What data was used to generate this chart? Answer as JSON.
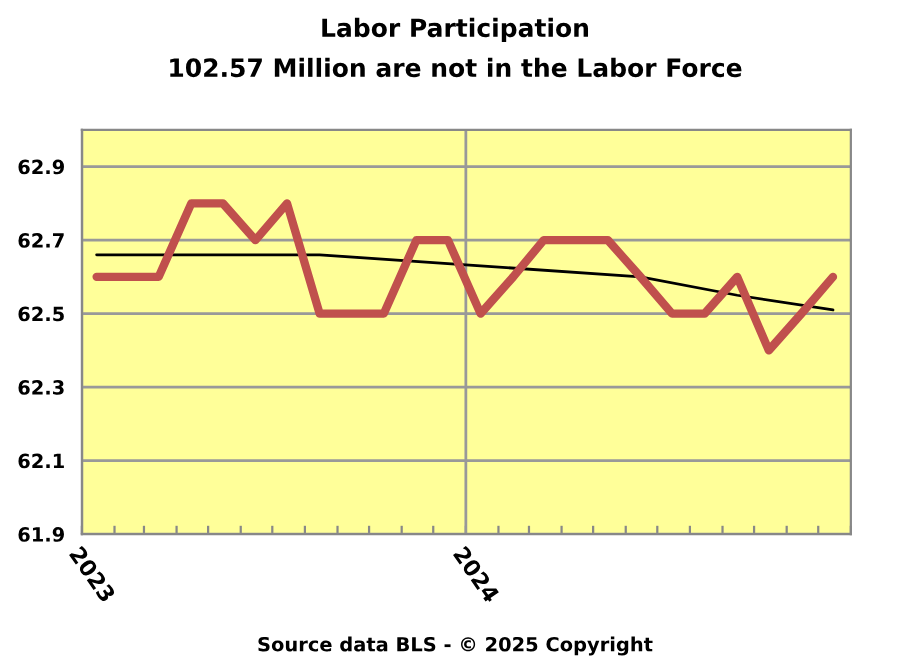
{
  "chart_data": {
    "type": "line",
    "title": "Labor Participation",
    "subtitle": "102.57 Million are not in the Labor Force",
    "annotations": [
      "Source data BLS - © 2025 Copyright"
    ],
    "series": [
      {
        "color": "#c0504d",
        "x": [
          "2023-01-15",
          "2023-02-15",
          "2023-03-15",
          "2023-04-15",
          "2023-05-15",
          "2023-06-15",
          "2023-07-15",
          "2023-08-15",
          "2023-09-15",
          "2023-10-15",
          "2023-11-15",
          "2023-12-15",
          "2024-01-15",
          "2024-02-15",
          "2024-03-15",
          "2024-04-15",
          "2024-05-15",
          "2024-06-15",
          "2024-07-15",
          "2024-08-15",
          "2024-09-15",
          "2024-10-15",
          "2024-11-15",
          "2024-12-15"
        ],
        "values": [
          62.6,
          62.6,
          62.6,
          62.8,
          62.8,
          62.7,
          62.8,
          62.5,
          62.5,
          62.5,
          62.7,
          62.7,
          62.5,
          62.6,
          62.7,
          62.7,
          62.7,
          62.6,
          62.5,
          62.5,
          62.6,
          62.4,
          62.5,
          62.6
        ]
      },
      {
        "color": "#000000",
        "x": [
          "2023-01-15",
          "2023-08-15",
          "2024-01-15",
          "2024-06-15",
          "2024-09-15",
          "2024-12-15"
        ],
        "values": [
          62.66,
          62.66,
          62.63,
          62.6,
          62.55,
          62.51
        ]
      }
    ],
    "xlim": [
      "2023-01-01",
      "2025-01-01"
    ],
    "xticks": [
      {
        "value": "2023-01-01",
        "label": "2023"
      },
      {
        "value": "2023-02-01",
        "label": null
      },
      {
        "value": "2023-03-01",
        "label": null
      },
      {
        "value": "2023-04-01",
        "label": null
      },
      {
        "value": "2023-05-01",
        "label": null
      },
      {
        "value": "2023-06-01",
        "label": null
      },
      {
        "value": "2023-07-01",
        "label": null
      },
      {
        "value": "2023-08-01",
        "label": null
      },
      {
        "value": "2023-09-01",
        "label": null
      },
      {
        "value": "2023-10-01",
        "label": null
      },
      {
        "value": "2023-11-01",
        "label": null
      },
      {
        "value": "2023-12-01",
        "label": null
      },
      {
        "value": "2024-01-01",
        "label": "2024"
      },
      {
        "value": "2024-02-01",
        "label": null
      },
      {
        "value": "2024-03-01",
        "label": null
      },
      {
        "value": "2024-04-01",
        "label": null
      },
      {
        "value": "2024-05-01",
        "label": null
      },
      {
        "value": "2024-06-01",
        "label": null
      },
      {
        "value": "2024-07-01",
        "label": null
      },
      {
        "value": "2024-08-01",
        "label": null
      },
      {
        "value": "2024-09-01",
        "label": null
      },
      {
        "value": "2024-10-01",
        "label": null
      },
      {
        "value": "2024-11-01",
        "label": null
      },
      {
        "value": "2024-12-01",
        "label": null
      },
      {
        "value": "2025-01-01",
        "label": null
      }
    ],
    "ylim": [
      61.9,
      63.0
    ],
    "yticks": [
      61.9,
      62.1,
      62.3,
      62.5,
      62.7,
      62.9
    ],
    "grid": true,
    "legend": false
  }
}
